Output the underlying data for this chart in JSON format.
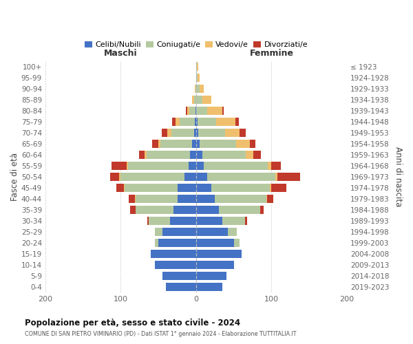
{
  "age_groups_bottom_to_top": [
    "0-4",
    "5-9",
    "10-14",
    "15-19",
    "20-24",
    "25-29",
    "30-34",
    "35-39",
    "40-44",
    "45-49",
    "50-54",
    "55-59",
    "60-64",
    "65-69",
    "70-74",
    "75-79",
    "80-84",
    "85-89",
    "90-94",
    "95-99",
    "100+"
  ],
  "birth_years_bottom_to_top": [
    "2019-2023",
    "2014-2018",
    "2009-2013",
    "2004-2008",
    "1999-2003",
    "1994-1998",
    "1989-1993",
    "1984-1988",
    "1979-1983",
    "1974-1978",
    "1969-1973",
    "1964-1968",
    "1959-1963",
    "1954-1958",
    "1949-1953",
    "1944-1948",
    "1939-1943",
    "1934-1938",
    "1929-1933",
    "1924-1928",
    "≤ 1923"
  ],
  "colors": {
    "celibi": "#4472c4",
    "coniugati": "#b5c9a0",
    "vedovi": "#f0bf6e",
    "divorziati": "#c0392b"
  },
  "male_celibi": [
    40,
    45,
    55,
    60,
    50,
    45,
    35,
    30,
    25,
    25,
    15,
    10,
    8,
    5,
    3,
    2,
    1,
    0,
    0,
    0,
    0
  ],
  "male_coniugati": [
    0,
    0,
    0,
    0,
    5,
    10,
    28,
    50,
    55,
    70,
    85,
    80,
    58,
    42,
    30,
    20,
    8,
    3,
    1,
    0,
    0
  ],
  "male_vedovi": [
    0,
    0,
    0,
    0,
    0,
    0,
    0,
    0,
    1,
    1,
    2,
    2,
    2,
    3,
    5,
    5,
    3,
    2,
    1,
    0,
    0
  ],
  "male_divorziati": [
    0,
    0,
    0,
    0,
    0,
    0,
    2,
    8,
    8,
    10,
    12,
    20,
    8,
    8,
    8,
    5,
    2,
    0,
    0,
    0,
    0
  ],
  "female_celibi": [
    35,
    40,
    50,
    60,
    50,
    42,
    35,
    30,
    25,
    20,
    15,
    10,
    8,
    5,
    3,
    2,
    0,
    0,
    0,
    0,
    0
  ],
  "female_coniugati": [
    0,
    0,
    0,
    0,
    8,
    12,
    30,
    55,
    68,
    78,
    90,
    85,
    58,
    48,
    35,
    25,
    15,
    8,
    5,
    2,
    1
  ],
  "female_vedovi": [
    0,
    0,
    0,
    0,
    0,
    0,
    0,
    0,
    1,
    2,
    3,
    5,
    10,
    18,
    20,
    25,
    20,
    12,
    5,
    3,
    2
  ],
  "female_divorziati": [
    0,
    0,
    0,
    0,
    0,
    0,
    3,
    5,
    8,
    20,
    30,
    12,
    10,
    8,
    8,
    5,
    2,
    0,
    0,
    0,
    0
  ],
  "title": "Popolazione per età, sesso e stato civile - 2024",
  "subtitle": "COMUNE DI SAN PIETRO VIMINARIO (PD) - Dati ISTAT 1° gennaio 2024 - Elaborazione TUTTITALIA.IT",
  "xlabel_left": "Maschi",
  "xlabel_right": "Femmine",
  "ylabel_left": "Fasce di età",
  "ylabel_right": "Anni di nascita",
  "xlim": 200,
  "bg_color": "#ffffff",
  "grid_color": "#cccccc"
}
